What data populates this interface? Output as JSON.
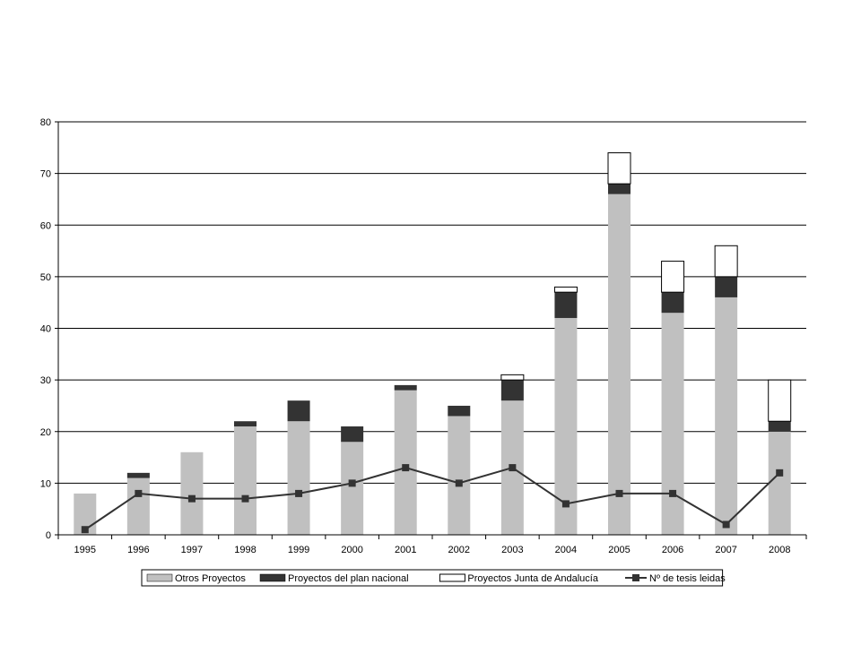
{
  "chart_data": {
    "type": "bar",
    "stacked": true,
    "title": "",
    "xlabel": "",
    "ylabel": "",
    "ylim": [
      0,
      80
    ],
    "yticks": [
      0,
      10,
      20,
      30,
      40,
      50,
      60,
      70,
      80
    ],
    "grid": true,
    "legend_position": "bottom",
    "categories": [
      "1995",
      "1996",
      "1997",
      "1998",
      "1999",
      "2000",
      "2001",
      "2002",
      "2003",
      "2004",
      "2005",
      "2006",
      "2007",
      "2008"
    ],
    "series": [
      {
        "name": "Otros Proyectos",
        "kind": "bar",
        "color": "#c0c0c0",
        "values": [
          8,
          11,
          16,
          21,
          22,
          18,
          28,
          23,
          26,
          42,
          66,
          43,
          46,
          20
        ]
      },
      {
        "name": "Proyectos del plan nacional",
        "kind": "bar",
        "color": "#333333",
        "values": [
          0,
          1,
          0,
          1,
          4,
          3,
          1,
          2,
          4,
          5,
          2,
          4,
          4,
          2
        ]
      },
      {
        "name": "Proyectos Junta de Andalucía",
        "kind": "bar",
        "color": "#ffffff",
        "values": [
          0,
          0,
          0,
          0,
          0,
          0,
          0,
          0,
          1,
          1,
          6,
          6,
          6,
          8
        ]
      },
      {
        "name": "Nº de tesis leidas",
        "kind": "line",
        "color": "#333333",
        "values": [
          1,
          8,
          7,
          7,
          8,
          10,
          13,
          10,
          13,
          6,
          8,
          8,
          2,
          12
        ]
      }
    ]
  }
}
